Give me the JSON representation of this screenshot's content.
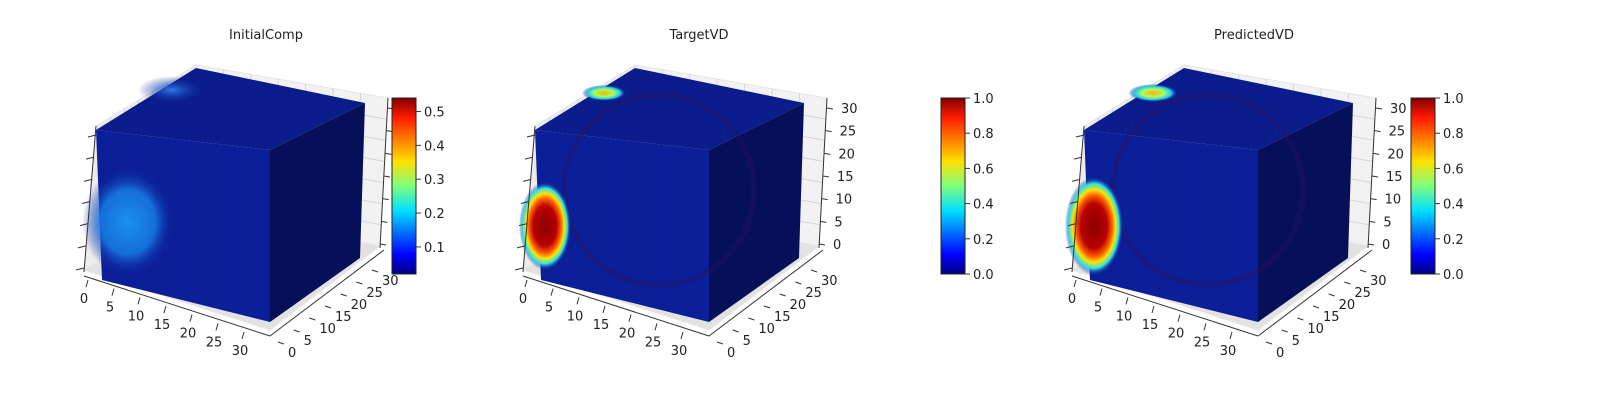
{
  "chart_data": [
    {
      "type": "3d-voxel",
      "title": "InitialComp",
      "x_ticks": [
        "0",
        "5",
        "10",
        "15",
        "20",
        "25",
        "30"
      ],
      "y_ticks": [
        "0",
        "5",
        "10",
        "15",
        "20",
        "25",
        "30"
      ],
      "z_ticks": [],
      "xlim": [
        0,
        32
      ],
      "ylim": [
        0,
        32
      ],
      "zlim": [
        0,
        32
      ],
      "colorbar": {
        "ticks": [
          "0.1",
          "0.2",
          "0.3",
          "0.4",
          "0.5"
        ],
        "range": [
          0.02,
          0.54
        ],
        "colormap": "jet"
      }
    },
    {
      "type": "3d-voxel",
      "title": "TargetVD",
      "x_ticks": [
        "0",
        "5",
        "10",
        "15",
        "20",
        "25",
        "30"
      ],
      "y_ticks": [
        "0",
        "5",
        "10",
        "15",
        "20",
        "25",
        "30"
      ],
      "z_ticks": [
        "0",
        "5",
        "10",
        "15",
        "20",
        "25",
        "30"
      ],
      "xlim": [
        0,
        32
      ],
      "ylim": [
        0,
        32
      ],
      "zlim": [
        0,
        32
      ],
      "colorbar": {
        "ticks": [
          "0.0",
          "0.2",
          "0.4",
          "0.6",
          "0.8",
          "1.0"
        ],
        "range": [
          0.0,
          1.0
        ],
        "colormap": "jet"
      }
    },
    {
      "type": "3d-voxel",
      "title": "PredictedVD",
      "x_ticks": [
        "0",
        "5",
        "10",
        "15",
        "20",
        "25",
        "30"
      ],
      "y_ticks": [
        "0",
        "5",
        "10",
        "15",
        "20",
        "25",
        "30"
      ],
      "z_ticks": [
        "0",
        "5",
        "10",
        "15",
        "20",
        "25",
        "30"
      ],
      "xlim": [
        0,
        32
      ],
      "ylim": [
        0,
        32
      ],
      "zlim": [
        0,
        32
      ],
      "colorbar": {
        "ticks": [
          "0.0",
          "0.2",
          "0.4",
          "0.6",
          "0.8",
          "1.0"
        ],
        "range": [
          0.0,
          1.0
        ],
        "colormap": "jet"
      }
    }
  ],
  "colors": {
    "cube_front": "#0c1f9a",
    "cube_top": "#0a1c8e",
    "cube_side": "#06105a",
    "hot_red": "#8b0000",
    "blob_blue": "#1a8fe8"
  }
}
